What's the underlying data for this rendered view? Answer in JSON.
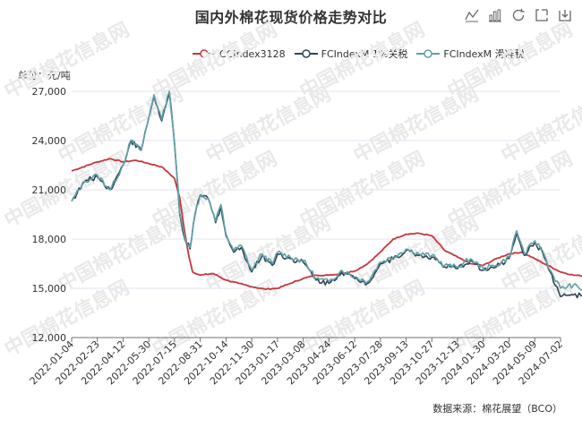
{
  "chart_data": {
    "type": "line",
    "title": "国内外棉花现货价格走势对比",
    "unit_label": "单位：元/吨",
    "source": "数据来源：棉花展望（BCO）",
    "watermark": "中国棉花信息网",
    "ylim": [
      12000,
      27000
    ],
    "yticks": [
      "12,000",
      "15,000",
      "18,000",
      "21,000",
      "24,000",
      "27,000"
    ],
    "ytick_values": [
      12000,
      15000,
      18000,
      21000,
      24000,
      27000
    ],
    "xticks": [
      "2022-01-04",
      "2022-02-23",
      "2022-04-12",
      "2022-05-30",
      "2022-07-15",
      "2022-08-31",
      "2022-10-14",
      "2022-11-30",
      "2023-01-17",
      "2023-03-08",
      "2023-04-24",
      "2023-06-12",
      "2023-07-28",
      "2023-09-13",
      "2023-10-27",
      "2023-12-13",
      "2024-01-30",
      "2024-03-20",
      "2024-05-09",
      "2024-07-02"
    ],
    "grid": "horizontal",
    "legend_position": "top-center",
    "series": [
      {
        "name": "CCIndex3128",
        "color": "#c8363d",
        "points": [
          [
            0,
            22150
          ],
          [
            1,
            22700
          ],
          [
            1.5,
            22900
          ],
          [
            2,
            22700
          ],
          [
            2.5,
            22800
          ],
          [
            3,
            22600
          ],
          [
            3.5,
            22400
          ],
          [
            4,
            21700
          ],
          [
            4.2,
            20500
          ],
          [
            4.4,
            18400
          ],
          [
            4.55,
            17000
          ],
          [
            4.7,
            16000
          ],
          [
            5,
            15800
          ],
          [
            5.5,
            15900
          ],
          [
            6,
            15500
          ],
          [
            6.5,
            15300
          ],
          [
            7,
            15100
          ],
          [
            7.5,
            14950
          ],
          [
            8,
            15000
          ],
          [
            8.5,
            15300
          ],
          [
            9,
            15600
          ],
          [
            9.5,
            15800
          ],
          [
            10,
            15800
          ],
          [
            10.5,
            15900
          ],
          [
            11,
            16050
          ],
          [
            11.5,
            16500
          ],
          [
            12,
            17200
          ],
          [
            12.5,
            18000
          ],
          [
            13,
            18300
          ],
          [
            13.5,
            18350
          ],
          [
            14,
            18200
          ],
          [
            14.5,
            17300
          ],
          [
            15,
            16900
          ],
          [
            15.5,
            16500
          ],
          [
            16,
            16400
          ],
          [
            16.5,
            16800
          ],
          [
            17,
            17100
          ],
          [
            17.5,
            17200
          ],
          [
            18,
            16800
          ],
          [
            18.5,
            16400
          ],
          [
            19,
            16000
          ],
          [
            19.5,
            15800
          ],
          [
            20,
            15750
          ]
        ]
      },
      {
        "name": "FCIndexM 1%关税",
        "color": "#2f4554",
        "points": [
          [
            0,
            20300
          ],
          [
            0.5,
            21500
          ],
          [
            1,
            21800
          ],
          [
            1.5,
            21000
          ],
          [
            2,
            22500
          ],
          [
            2.3,
            24000
          ],
          [
            2.7,
            23400
          ],
          [
            3,
            25400
          ],
          [
            3.2,
            26700
          ],
          [
            3.5,
            25200
          ],
          [
            3.8,
            26900
          ],
          [
            4,
            23800
          ],
          [
            4.2,
            19500
          ],
          [
            4.4,
            18000
          ],
          [
            4.6,
            17400
          ],
          [
            4.8,
            19500
          ],
          [
            5,
            20700
          ],
          [
            5.3,
            20500
          ],
          [
            5.6,
            19000
          ],
          [
            5.8,
            20000
          ],
          [
            6,
            18200
          ],
          [
            6.3,
            17200
          ],
          [
            6.6,
            17500
          ],
          [
            7,
            16000
          ],
          [
            7.4,
            17000
          ],
          [
            7.8,
            16400
          ],
          [
            8,
            17100
          ],
          [
            8.5,
            16800
          ],
          [
            9,
            16600
          ],
          [
            9.5,
            15500
          ],
          [
            10,
            15300
          ],
          [
            10.5,
            16000
          ],
          [
            11,
            15600
          ],
          [
            11.5,
            15300
          ],
          [
            12,
            16500
          ],
          [
            12.5,
            16800
          ],
          [
            13,
            17300
          ],
          [
            13.5,
            17000
          ],
          [
            14,
            16900
          ],
          [
            14.5,
            16300
          ],
          [
            15,
            16200
          ],
          [
            15.5,
            16700
          ],
          [
            16,
            16100
          ],
          [
            16.5,
            16300
          ],
          [
            17,
            16800
          ],
          [
            17.3,
            18400
          ],
          [
            17.6,
            17000
          ],
          [
            18,
            17800
          ],
          [
            18.3,
            17200
          ],
          [
            18.6,
            16000
          ],
          [
            19,
            14500
          ],
          [
            19.5,
            14600
          ],
          [
            19.8,
            14550
          ],
          [
            20,
            14650
          ]
        ]
      },
      {
        "name": "FCIndexM 滑准税",
        "color": "#61a0a8",
        "points": [
          [
            0,
            20300
          ],
          [
            0.5,
            21500
          ],
          [
            1,
            21900
          ],
          [
            1.5,
            21000
          ],
          [
            2,
            22500
          ],
          [
            2.3,
            24000
          ],
          [
            2.7,
            23400
          ],
          [
            3,
            25400
          ],
          [
            3.2,
            26800
          ],
          [
            3.5,
            25300
          ],
          [
            3.8,
            27000
          ],
          [
            4,
            23900
          ],
          [
            4.2,
            19600
          ],
          [
            4.4,
            18100
          ],
          [
            4.6,
            17500
          ],
          [
            4.8,
            19600
          ],
          [
            5,
            20700
          ],
          [
            5.3,
            20500
          ],
          [
            5.6,
            19100
          ],
          [
            5.8,
            20100
          ],
          [
            6,
            18300
          ],
          [
            6.3,
            17300
          ],
          [
            6.6,
            17600
          ],
          [
            7,
            16100
          ],
          [
            7.4,
            17100
          ],
          [
            7.8,
            16500
          ],
          [
            8,
            17200
          ],
          [
            8.5,
            16900
          ],
          [
            9,
            16700
          ],
          [
            9.5,
            15600
          ],
          [
            10,
            15400
          ],
          [
            10.5,
            16100
          ],
          [
            11,
            15700
          ],
          [
            11.5,
            15400
          ],
          [
            12,
            16600
          ],
          [
            12.5,
            16900
          ],
          [
            13,
            17400
          ],
          [
            13.5,
            17100
          ],
          [
            14,
            17000
          ],
          [
            14.5,
            16400
          ],
          [
            15,
            16300
          ],
          [
            15.5,
            16800
          ],
          [
            16,
            16200
          ],
          [
            16.5,
            16400
          ],
          [
            17,
            16900
          ],
          [
            17.3,
            18500
          ],
          [
            17.6,
            17100
          ],
          [
            18,
            17900
          ],
          [
            18.3,
            17300
          ],
          [
            18.6,
            16100
          ],
          [
            19,
            15000
          ],
          [
            19.5,
            15200
          ],
          [
            19.8,
            14900
          ],
          [
            20,
            15200
          ]
        ]
      }
    ]
  },
  "toolbar": {
    "icons": [
      "line-chart-icon",
      "bar-chart-icon",
      "restore-icon",
      "data-view-icon",
      "save-image-icon"
    ]
  }
}
